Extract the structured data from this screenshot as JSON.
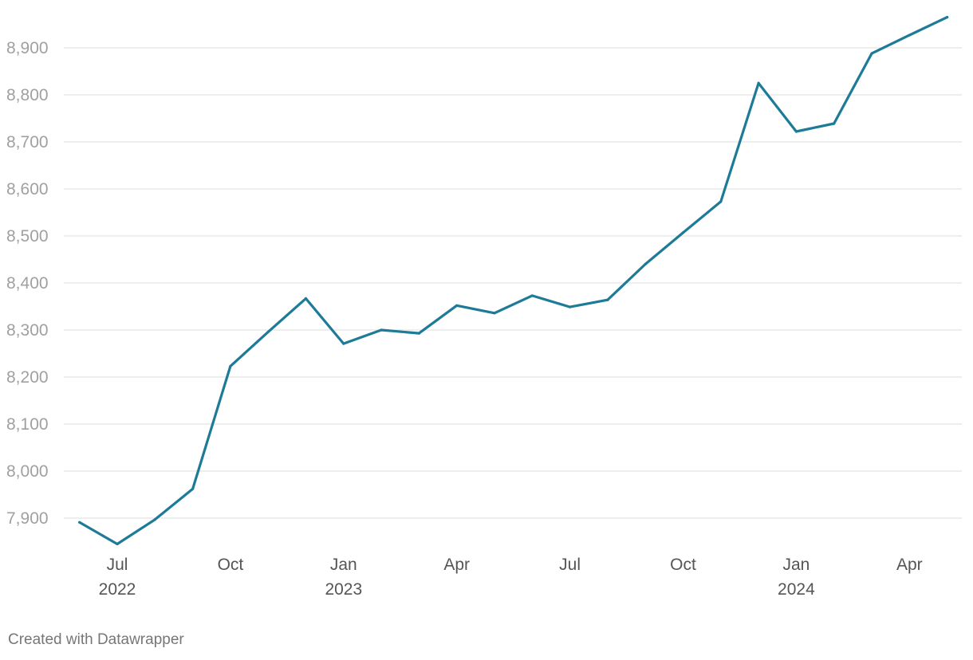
{
  "credit": "Created with Datawrapper",
  "chart_data": {
    "type": "line",
    "title": "",
    "xlabel": "",
    "ylabel": "",
    "ylim": [
      7845,
      8965
    ],
    "y_ticks": [
      {
        "value": 7900,
        "label": "7,900"
      },
      {
        "value": 8000,
        "label": "8,000"
      },
      {
        "value": 8100,
        "label": "8,100"
      },
      {
        "value": 8200,
        "label": "8,200"
      },
      {
        "value": 8300,
        "label": "8,300"
      },
      {
        "value": 8400,
        "label": "8,400"
      },
      {
        "value": 8500,
        "label": "8,500"
      },
      {
        "value": 8600,
        "label": "8,600"
      },
      {
        "value": 8700,
        "label": "8,700"
      },
      {
        "value": 8800,
        "label": "8,800"
      },
      {
        "value": 8900,
        "label": "8,900"
      }
    ],
    "x_ticks": [
      {
        "date": "2022-07",
        "month": "Jul",
        "year": "2022"
      },
      {
        "date": "2022-10",
        "month": "Oct",
        "year": ""
      },
      {
        "date": "2023-01",
        "month": "Jan",
        "year": "2023"
      },
      {
        "date": "2023-04",
        "month": "Apr",
        "year": ""
      },
      {
        "date": "2023-07",
        "month": "Jul",
        "year": ""
      },
      {
        "date": "2023-10",
        "month": "Oct",
        "year": ""
      },
      {
        "date": "2024-01",
        "month": "Jan",
        "year": "2024"
      },
      {
        "date": "2024-04",
        "month": "Apr",
        "year": ""
      }
    ],
    "grid": true,
    "series": [
      {
        "color": "#1d7b97",
        "points": [
          {
            "x": "2022-06",
            "y": 7891
          },
          {
            "x": "2022-07",
            "y": 7845
          },
          {
            "x": "2022-08",
            "y": 7897
          },
          {
            "x": "2022-09",
            "y": 7962
          },
          {
            "x": "2022-10",
            "y": 8223
          },
          {
            "x": "2022-11",
            "y": 8296
          },
          {
            "x": "2022-12",
            "y": 8367
          },
          {
            "x": "2023-01",
            "y": 8271
          },
          {
            "x": "2023-02",
            "y": 8300
          },
          {
            "x": "2023-03",
            "y": 8293
          },
          {
            "x": "2023-04",
            "y": 8352
          },
          {
            "x": "2023-05",
            "y": 8336
          },
          {
            "x": "2023-06",
            "y": 8373
          },
          {
            "x": "2023-07",
            "y": 8349
          },
          {
            "x": "2023-08",
            "y": 8364
          },
          {
            "x": "2023-09",
            "y": 8440
          },
          {
            "x": "2023-10",
            "y": 8507
          },
          {
            "x": "2023-11",
            "y": 8573
          },
          {
            "x": "2023-12",
            "y": 8825
          },
          {
            "x": "2024-01",
            "y": 8722
          },
          {
            "x": "2024-02",
            "y": 8739
          },
          {
            "x": "2024-03",
            "y": 8888
          },
          {
            "x": "2024-04",
            "y": 8927
          },
          {
            "x": "2024-05",
            "y": 8965
          }
        ]
      }
    ]
  }
}
